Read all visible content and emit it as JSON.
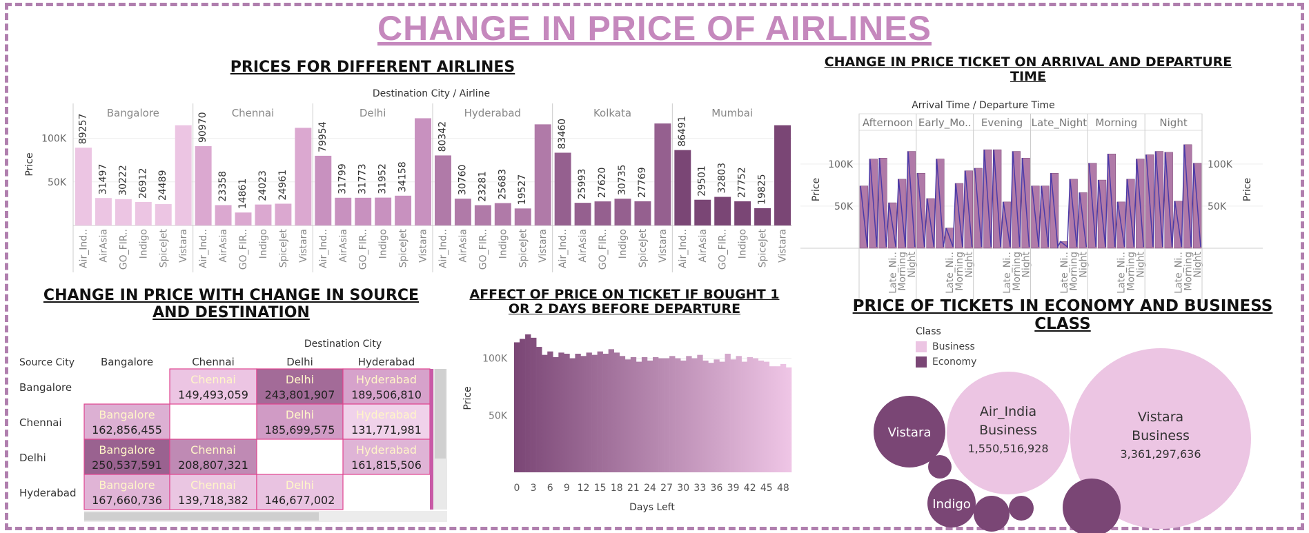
{
  "dashboard": {
    "title": "CHANGE IN PRICE OF AIRLINES"
  },
  "chart_data": [
    {
      "type": "bar",
      "title": "PRICES FOR DIFFERENT AIRLINES",
      "header": "Destination City / Airline",
      "ylabel": "Price",
      "yticks": [
        "50K",
        "100K"
      ],
      "ylim": [
        0,
        140000
      ],
      "groups": [
        {
          "name": "Bangalore",
          "color": "#ecc5e3",
          "labels": [
            "Air_Ind..",
            "AirAsia",
            "GO_FIR..",
            "Indigo",
            "SpiceJet",
            "Vistara"
          ],
          "values": [
            89257,
            31497,
            30222,
            26912,
            24489,
            115000
          ],
          "show": [
            true,
            true,
            true,
            true,
            true,
            false
          ]
        },
        {
          "name": "Chennai",
          "color": "#dba8d0",
          "labels": [
            "Air_Ind..",
            "AirAsia",
            "GO_FIR..",
            "Indigo",
            "SpiceJet",
            "Vistara"
          ],
          "values": [
            90970,
            23358,
            14861,
            24023,
            24961,
            112000
          ],
          "show": [
            true,
            true,
            true,
            true,
            true,
            false
          ]
        },
        {
          "name": "Delhi",
          "color": "#c891bf",
          "labels": [
            "Air_Ind..",
            "AirAsia",
            "GO_FIR..",
            "Indigo",
            "SpiceJet",
            "Vistara"
          ],
          "values": [
            79954,
            31799,
            31773,
            31952,
            34158,
            123000
          ],
          "show": [
            true,
            true,
            true,
            true,
            true,
            false
          ]
        },
        {
          "name": "Hyderabad",
          "color": "#b07aa8",
          "labels": [
            "Air_Ind..",
            "AirAsia",
            "GO_FIR..",
            "Indigo",
            "SpiceJet",
            "Vistara"
          ],
          "values": [
            80342,
            30760,
            23281,
            25683,
            19527,
            116000
          ],
          "show": [
            true,
            true,
            true,
            true,
            true,
            false
          ]
        },
        {
          "name": "Kolkata",
          "color": "#95608f",
          "labels": [
            "Air_Ind..",
            "AirAsia",
            "GO_FIR..",
            "Indigo",
            "SpiceJet",
            "Vistara"
          ],
          "values": [
            83460,
            25993,
            27620,
            30735,
            27769,
            117000
          ],
          "show": [
            true,
            true,
            true,
            true,
            true,
            false
          ]
        },
        {
          "name": "Mumbai",
          "color": "#7a4675",
          "labels": [
            "Air_Ind..",
            "AirAsia",
            "GO_FIR..",
            "Indigo",
            "SpiceJet",
            "Vistara"
          ],
          "values": [
            86491,
            29501,
            32803,
            27752,
            19825,
            115000
          ],
          "show": [
            true,
            true,
            true,
            true,
            true,
            false
          ]
        }
      ]
    },
    {
      "type": "bar",
      "title": "CHANGE IN PRICE TICKET ON ARRIVAL AND DEPARTURE TIME",
      "header": "Arrival Time / Departure Time",
      "ylabel": "Price",
      "yticks": [
        "50K",
        "100K"
      ],
      "ylim": [
        0,
        140000
      ],
      "groups": [
        {
          "name": "Afternoon",
          "labels": [
            "Afternoon",
            "Early_M..",
            "Evening",
            "Late_Ni..",
            "Morning",
            "Night"
          ],
          "values": [
            74000,
            106000,
            107000,
            54000,
            82000,
            115000
          ]
        },
        {
          "name": "Early_Mo..",
          "labels": [
            "Afternoon",
            "Early_M..",
            "Evening",
            "Late_Ni..",
            "Morning",
            "Night"
          ],
          "values": [
            89000,
            59000,
            106000,
            24000,
            77000,
            92000
          ]
        },
        {
          "name": "Evening",
          "labels": [
            "Afternoon",
            "Early_M..",
            "Evening",
            "Late_Ni..",
            "Morning",
            "Night"
          ],
          "values": [
            95000,
            117000,
            117000,
            55000,
            115000,
            107000
          ]
        },
        {
          "name": "Late_Night",
          "labels": [
            "Afternoon",
            "Early_M..",
            "Evening",
            "Late_Ni..",
            "Morning",
            "Night"
          ],
          "values": [
            74000,
            74000,
            89000,
            8000,
            82000,
            66000
          ]
        },
        {
          "name": "Morning",
          "labels": [
            "Afternoon",
            "Early_M..",
            "Evening",
            "Late_Ni..",
            "Morning",
            "Night"
          ],
          "values": [
            101000,
            81000,
            112000,
            55000,
            82000,
            106000
          ]
        },
        {
          "name": "Night",
          "labels": [
            "Afternoon",
            "Early_M..",
            "Evening",
            "Late_Ni..",
            "Morning",
            "Night"
          ],
          "values": [
            111000,
            115000,
            114000,
            56000,
            123000,
            101000
          ]
        }
      ]
    },
    {
      "type": "heatmap",
      "title": "CHANGE IN PRICE WITH CHANGE IN SOURCE AND DESTINATION",
      "col_header": "Destination City",
      "row_header": "Source City",
      "columns": [
        "Bangalore",
        "Chennai",
        "Delhi",
        "Hyderabad"
      ],
      "rows": [
        {
          "name": "Bangalore",
          "cells": [
            null,
            {
              "label": "Chennai",
              "value": "149,493,059"
            },
            {
              "label": "Delhi",
              "value": "243,801,907"
            },
            {
              "label": "Hyderabad",
              "value": "189,506,810"
            }
          ]
        },
        {
          "name": "Chennai",
          "cells": [
            {
              "label": "Bangalore",
              "value": "162,856,455"
            },
            null,
            {
              "label": "Delhi",
              "value": "185,699,575"
            },
            {
              "label": "Hyderabad",
              "value": "131,771,981"
            }
          ]
        },
        {
          "name": "Delhi",
          "cells": [
            {
              "label": "Bangalore",
              "value": "250,537,591"
            },
            {
              "label": "Chennai",
              "value": "208,807,321"
            },
            null,
            {
              "label": "Hyderabad",
              "value": "161,815,506"
            }
          ]
        },
        {
          "name": "Hyderabad",
          "cells": [
            {
              "label": "Bangalore",
              "value": "167,660,736"
            },
            {
              "label": "Chennai",
              "value": "139,718,382"
            },
            {
              "label": "Delhi",
              "value": "146,677,002"
            },
            null
          ]
        }
      ]
    },
    {
      "type": "bar",
      "title": "AFFECT OF PRICE ON TICKET IF BOUGHT 1 OR 2 DAYS BEFORE DEPARTURE",
      "xlabel": "Days Left",
      "ylabel": "Price",
      "yticks": [
        "50K",
        "100K"
      ],
      "xticks": [
        "0",
        "3",
        "6",
        "9",
        "12",
        "15",
        "18",
        "21",
        "24",
        "27",
        "30",
        "33",
        "36",
        "39",
        "42",
        "45",
        "48"
      ],
      "ylim": [
        0,
        130000
      ],
      "x": [
        0,
        1,
        2,
        3,
        4,
        5,
        6,
        7,
        8,
        9,
        10,
        11,
        12,
        13,
        14,
        15,
        16,
        17,
        18,
        19,
        20,
        21,
        22,
        23,
        24,
        25,
        26,
        27,
        28,
        29,
        30,
        31,
        32,
        33,
        34,
        35,
        36,
        37,
        38,
        39,
        40,
        41,
        42,
        43,
        44,
        45,
        46,
        47,
        48,
        49
      ],
      "values": [
        114000,
        117000,
        121000,
        118000,
        110000,
        103000,
        106000,
        101000,
        105000,
        104000,
        100000,
        104000,
        102000,
        105000,
        103000,
        106000,
        104000,
        108000,
        105000,
        102000,
        99000,
        101000,
        97000,
        101000,
        98000,
        101000,
        100000,
        100000,
        102000,
        100000,
        98000,
        102000,
        100000,
        103000,
        98000,
        96000,
        99000,
        97000,
        104000,
        99000,
        102000,
        97000,
        101000,
        100000,
        98000,
        97000,
        93000,
        93000,
        95000,
        92000
      ]
    },
    {
      "type": "scatter",
      "title": "PRICE OF TICKETS IN ECONOMY AND BUSINESS CLASS",
      "legend_title": "Class",
      "legend": [
        {
          "name": "Business",
          "color": "#ecc5e3"
        },
        {
          "name": "Economy",
          "color": "#7a4675"
        }
      ],
      "bubbles": [
        {
          "airline": "Vistara",
          "class": "Business",
          "value": "3,361,297,636"
        },
        {
          "airline": "Air_India",
          "class": "Business",
          "value": "1,550,516,928"
        },
        {
          "airline": "Vistara",
          "class": "Economy",
          "value": ""
        },
        {
          "airline": "Indigo",
          "class": "Economy",
          "value": ""
        },
        {
          "airline": "",
          "class": "Economy",
          "value": ""
        },
        {
          "airline": "",
          "class": "Economy",
          "value": ""
        },
        {
          "airline": "",
          "class": "Economy",
          "value": ""
        },
        {
          "airline": "",
          "class": "Economy",
          "value": ""
        }
      ]
    }
  ]
}
